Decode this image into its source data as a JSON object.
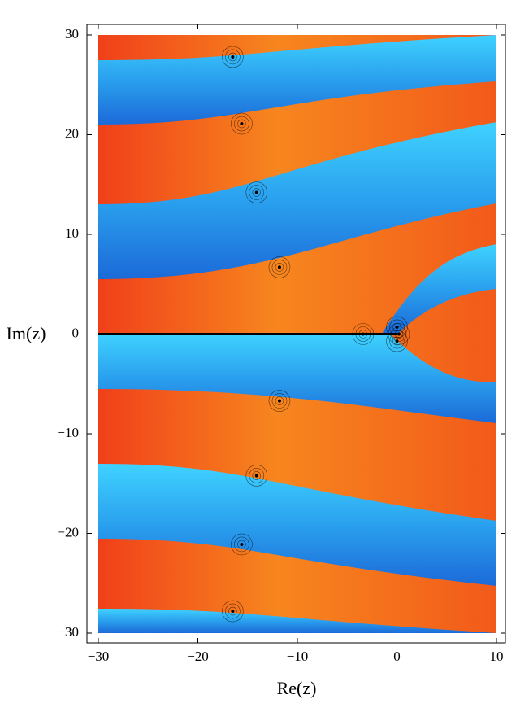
{
  "chart_data": {
    "type": "complex-plot",
    "x_label": "Re(z)",
    "y_label": "Im(z)",
    "xlim": [
      -30,
      10
    ],
    "ylim": [
      -30,
      30
    ],
    "xticks": [
      {
        "value": -30,
        "label": "−30"
      },
      {
        "value": -20,
        "label": "−20"
      },
      {
        "value": -10,
        "label": "−10"
      },
      0,
      10
    ],
    "yticks": [
      {
        "value": -30,
        "label": "−30"
      },
      {
        "value": -20,
        "label": "−20"
      },
      {
        "value": -10,
        "label": "−10"
      },
      0,
      10,
      20,
      30
    ],
    "points": {
      "color": "#000000",
      "x": [
        -16.5,
        -15.6,
        -14.1,
        -11.8,
        -3.4,
        0,
        0.2,
        0,
        -11.8,
        -14.1,
        -15.6,
        -16.5
      ],
      "y": [
        27.8,
        21.1,
        14.2,
        6.7,
        0,
        0.7,
        0,
        -0.7,
        -6.7,
        -14.2,
        -21.1,
        -27.8
      ]
    },
    "branch_cut": {
      "color": "#000000",
      "x": [
        -30,
        0
      ],
      "y": [
        0,
        0
      ]
    }
  }
}
